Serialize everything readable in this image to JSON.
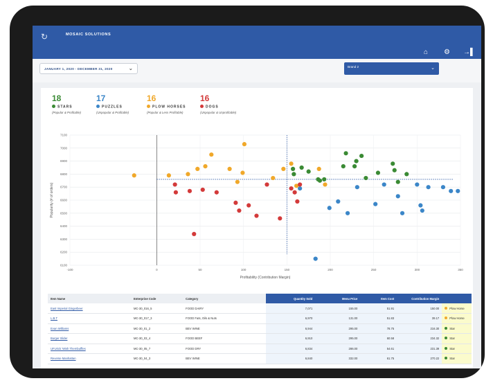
{
  "app": {
    "title": "MOSAIC SOLUTIONS",
    "logo_icon": "refresh-logo-icon",
    "header_icons": [
      "home-icon",
      "gear-icon",
      "logout-icon"
    ]
  },
  "filters": {
    "date_range": "JANUARY 1, 2020 - DECEMBER 31, 2020",
    "brand_select": "Brand 2"
  },
  "summary": [
    {
      "count": "18",
      "title": "STARS",
      "desc": "(Popular & Profitable)",
      "color": "#3a8a34"
    },
    {
      "count": "17",
      "title": "PUZZLES",
      "desc": "(Unpopular & Profitable)",
      "color": "#3b86c8"
    },
    {
      "count": "16",
      "title": "PLOW HORSES",
      "desc": "(Popular & Less Profitable)",
      "color": "#f0a82a"
    },
    {
      "count": "16",
      "title": "DOGS",
      "desc": "(Unpopular & Unprofitable)",
      "color": "#d33a3a"
    }
  ],
  "chart_data": {
    "type": "scatter",
    "xlabel": "Profitability (Contribution Margin)",
    "ylabel": "Popularity (# of orders)",
    "xlim": [
      -100,
      350
    ],
    "ylim": [
      6100,
      7100
    ],
    "x_ticks": [
      "-100",
      "0",
      "50",
      "100",
      "150",
      "200",
      "250",
      "300",
      "350"
    ],
    "y_ticks": [
      "6100",
      "6200",
      "6300",
      "6400",
      "6500",
      "6600",
      "6700",
      "6800",
      "6900",
      "7000",
      "7100"
    ],
    "threshold_x": 150,
    "threshold_y": 6760,
    "series": [
      {
        "name": "Stars",
        "color": "#3a8a34",
        "points": [
          [
            157,
            6840
          ],
          [
            158,
            6800
          ],
          [
            175,
            6820
          ],
          [
            167,
            6850
          ],
          [
            186,
            6760
          ],
          [
            188,
            6750
          ],
          [
            193,
            6760
          ],
          [
            215,
            6860
          ],
          [
            218,
            6960
          ],
          [
            228,
            6860
          ],
          [
            230,
            6900
          ],
          [
            236,
            6940
          ],
          [
            241,
            6770
          ],
          [
            255,
            6810
          ],
          [
            272,
            6880
          ],
          [
            274,
            6830
          ],
          [
            278,
            6740
          ],
          [
            288,
            6800
          ]
        ]
      },
      {
        "name": "Puzzles",
        "color": "#3b86c8",
        "points": [
          [
            165,
            6690
          ],
          [
            183,
            6150
          ],
          [
            199,
            6540
          ],
          [
            209,
            6590
          ],
          [
            220,
            6500
          ],
          [
            231,
            6700
          ],
          [
            252,
            6570
          ],
          [
            262,
            6720
          ],
          [
            278,
            6630
          ],
          [
            283,
            6500
          ],
          [
            300,
            6720
          ],
          [
            304,
            6560
          ],
          [
            306,
            6520
          ],
          [
            313,
            6700
          ],
          [
            330,
            6700
          ],
          [
            339,
            6670
          ],
          [
            347,
            6670
          ]
        ]
      },
      {
        "name": "Plow Horses",
        "color": "#f0a82a",
        "points": [
          [
            -26,
            6790
          ],
          [
            14,
            6790
          ],
          [
            36,
            6800
          ],
          [
            47,
            6840
          ],
          [
            56,
            6860
          ],
          [
            63,
            6950
          ],
          [
            84,
            6840
          ],
          [
            93,
            6740
          ],
          [
            99,
            6810
          ],
          [
            134,
            6770
          ],
          [
            146,
            6840
          ],
          [
            155,
            6880
          ],
          [
            161,
            6710
          ],
          [
            187,
            6840
          ],
          [
            194,
            6720
          ],
          [
            101,
            7030
          ]
        ]
      },
      {
        "name": "Dogs",
        "color": "#d33a3a",
        "points": [
          [
            21,
            6720
          ],
          [
            22,
            6660
          ],
          [
            38,
            6670
          ],
          [
            43,
            6340
          ],
          [
            53,
            6680
          ],
          [
            91,
            6580
          ],
          [
            95,
            6520
          ],
          [
            106,
            6560
          ],
          [
            115,
            6480
          ],
          [
            127,
            6720
          ],
          [
            142,
            6460
          ],
          [
            155,
            6690
          ],
          [
            162,
            6590
          ],
          [
            159,
            6660
          ],
          [
            165,
            6720
          ],
          [
            69,
            6660
          ]
        ]
      }
    ]
  },
  "table": {
    "headers": [
      "Item Name",
      "Enterprise Code",
      "Category",
      "Quantity Sold",
      "Menu Price",
      "Item Cost",
      "Contribution Margin",
      ""
    ],
    "rows": [
      {
        "name": "East Imperial Gingerbeer",
        "code": "MC-30_016_5",
        "category": "FOOD DAIRY",
        "qty": "7,071",
        "price": "155.00",
        "cost": "51.91",
        "margin": "150.00",
        "class": "Plow Horse",
        "class_color": "#f0a82a"
      },
      {
        "name": "L.B.T",
        "code": "MC-30_017_3",
        "category": "FOOD Fats, Oils & Nuts",
        "qty": "6,970",
        "price": "131.00",
        "cost": "51.83",
        "margin": "39.17",
        "class": "Plow Horse",
        "class_color": "#f0a82a"
      },
      {
        "name": "Evan Williams",
        "code": "MC-30_01_2",
        "category": "BEV WINE",
        "qty": "6,944",
        "price": "295.00",
        "cost": "78.75",
        "margin": "216.30",
        "class": "Star",
        "class_color": "#3a8a34"
      },
      {
        "name": "Burger Slider",
        "code": "MC-30_03_4",
        "category": "FOOD BEEF",
        "qty": "6,910",
        "price": "295.00",
        "cost": "60.58",
        "margin": "234.32",
        "class": "Star",
        "class_color": "#3a8a34"
      },
      {
        "name": "UFUrick 'Wish Thernbuffles",
        "code": "MC-30_05_7",
        "category": "FOOD DRY",
        "qty": "6,834",
        "price": "286.00",
        "cost": "54.61",
        "margin": "231.39",
        "class": "Star",
        "class_color": "#3a8a34"
      },
      {
        "name": "Reverse Manhattan",
        "code": "MC-30_04_3",
        "category": "BEV WINE",
        "qty": "6,840",
        "price": "332.00",
        "cost": "61.75",
        "margin": "270.22",
        "class": "Star",
        "class_color": "#3a8a34"
      }
    ]
  }
}
